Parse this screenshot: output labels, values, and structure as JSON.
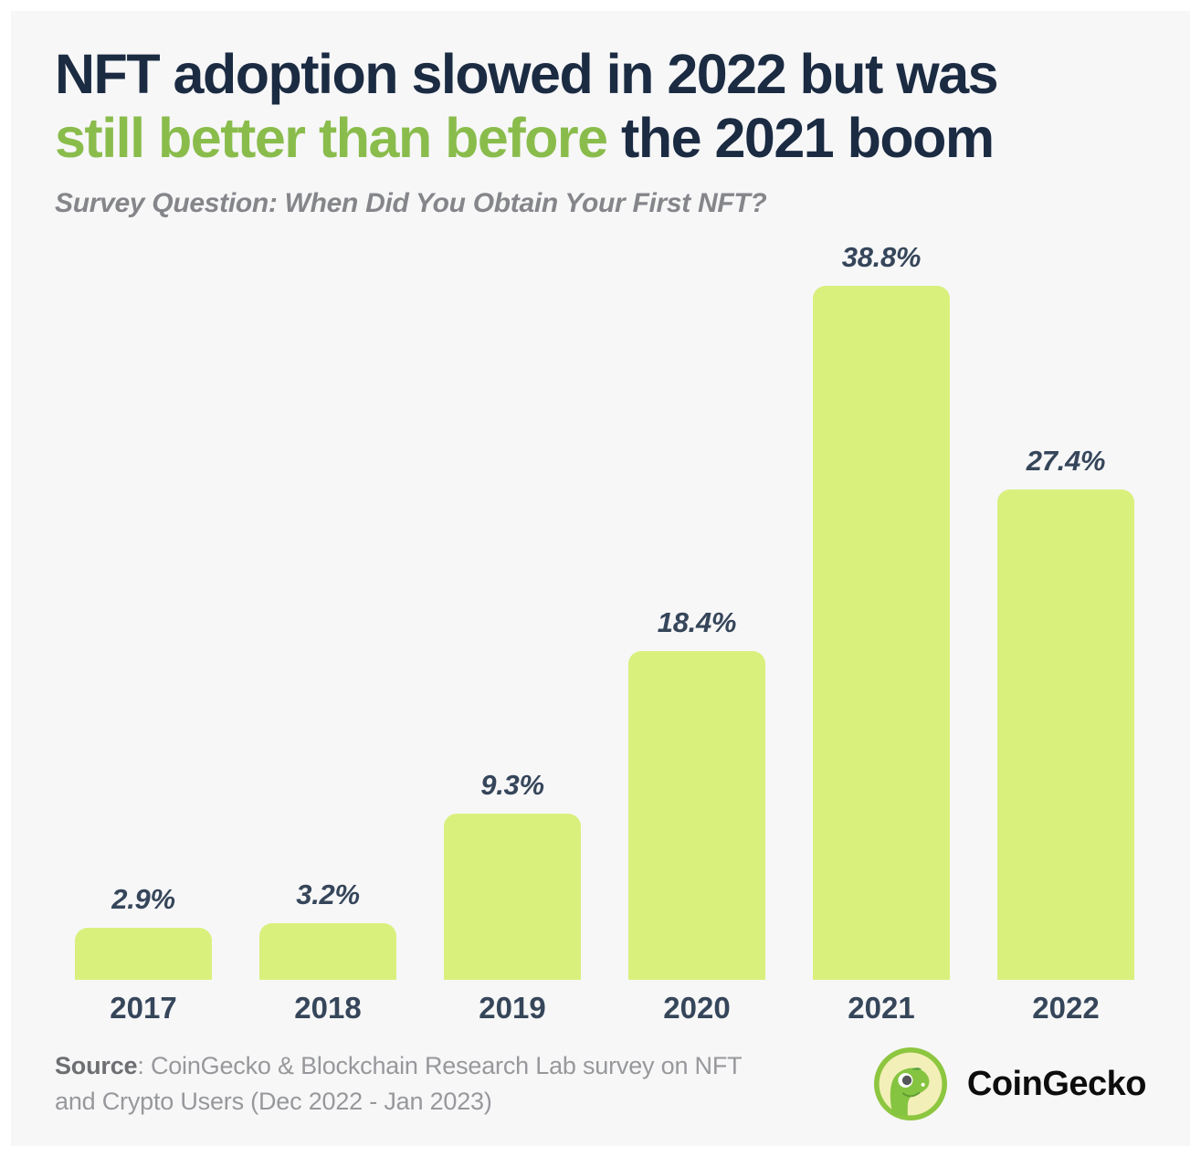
{
  "title": {
    "line1": "NFT adoption slowed in 2022 but was",
    "line2_green": "still better than before",
    "line2_dark": " the 2021 boom"
  },
  "subtitle": "Survey Question: When Did You Obtain Your First NFT?",
  "chart_data": {
    "type": "bar",
    "title": "NFT adoption slowed in 2022 but was still better than before the 2021 boom",
    "subtitle": "Survey Question: When Did You Obtain Your First NFT?",
    "categories": [
      "2017",
      "2018",
      "2019",
      "2020",
      "2021",
      "2022"
    ],
    "values": [
      2.9,
      3.2,
      9.3,
      18.4,
      38.8,
      27.4
    ],
    "value_labels": [
      "2.9%",
      "3.2%",
      "9.3%",
      "18.4%",
      "38.8%",
      "27.4%"
    ],
    "xlabel": "",
    "ylabel": "",
    "ylim": [
      0,
      42
    ],
    "grid": false,
    "legend": false,
    "bar_color": "#d9f07d",
    "label_color": "#36465a"
  },
  "footer": {
    "source_label": "Source",
    "source_text": ": CoinGecko & Blockchain Research Lab survey on NFT and Crypto Users (Dec 2022 - Jan 2023)",
    "brand_name": "CoinGecko"
  },
  "colors": {
    "background": "#f7f7f8",
    "frame": "#ffffff",
    "title_navy": "#1b2b42",
    "accent_green": "#8abc4c",
    "bar_fill": "#d9f07d",
    "subtitle_gray": "#85868a",
    "source_gray": "#97989b"
  },
  "icons": {
    "gecko_logo": "coingecko-gecko-icon"
  }
}
